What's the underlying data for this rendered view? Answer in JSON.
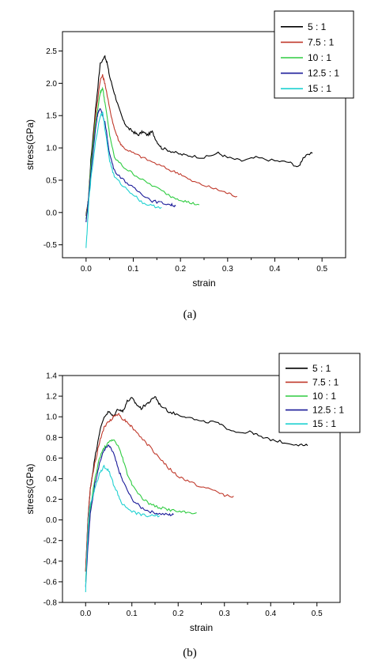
{
  "chart_data": [
    {
      "type": "line",
      "panel_label": "(a)",
      "xlabel": "strain",
      "ylabel": "stress(GPa)",
      "xlim": [
        -0.05,
        0.55
      ],
      "ylim": [
        -0.7,
        2.8
      ],
      "xticks": [
        0.0,
        0.1,
        0.2,
        0.3,
        0.4,
        0.5
      ],
      "xtick_labels": [
        "0.0",
        "0.1",
        "0.2",
        "0.3",
        "0.4",
        "0.5"
      ],
      "yticks": [
        -0.5,
        0.0,
        0.5,
        1.0,
        1.5,
        2.0,
        2.5
      ],
      "ytick_labels": [
        "-0.5",
        "0.0",
        "0.5",
        "1.0",
        "1.5",
        "2.0",
        "2.5"
      ],
      "grid": false,
      "legend_position": "top-right",
      "series": [
        {
          "name": "5 : 1",
          "color": "#000000",
          "x": [
            0.0,
            0.005,
            0.01,
            0.02,
            0.03,
            0.04,
            0.045,
            0.05,
            0.06,
            0.07,
            0.08,
            0.09,
            0.1,
            0.11,
            0.12,
            0.13,
            0.14,
            0.15,
            0.16,
            0.18,
            0.2,
            0.22,
            0.25,
            0.28,
            0.3,
            0.33,
            0.36,
            0.4,
            0.43,
            0.45,
            0.46,
            0.48
          ],
          "y": [
            -0.05,
            0.2,
            0.8,
            1.6,
            2.3,
            2.42,
            2.3,
            2.1,
            1.85,
            1.6,
            1.4,
            1.3,
            1.25,
            1.2,
            1.25,
            1.2,
            1.25,
            1.1,
            1.0,
            0.95,
            0.9,
            0.88,
            0.85,
            0.92,
            0.85,
            0.8,
            0.85,
            0.8,
            0.78,
            0.7,
            0.85,
            0.92
          ]
        },
        {
          "name": "7.5 : 1",
          "color": "#c0392b",
          "x": [
            0.0,
            0.005,
            0.01,
            0.02,
            0.03,
            0.035,
            0.04,
            0.05,
            0.06,
            0.07,
            0.08,
            0.1,
            0.12,
            0.15,
            0.18,
            0.2,
            0.22,
            0.25,
            0.28,
            0.3,
            0.32
          ],
          "y": [
            -0.05,
            0.2,
            0.7,
            1.5,
            2.05,
            2.12,
            2.0,
            1.6,
            1.3,
            1.1,
            1.0,
            0.92,
            0.85,
            0.75,
            0.65,
            0.6,
            0.5,
            0.42,
            0.35,
            0.3,
            0.25
          ]
        },
        {
          "name": "10 : 1",
          "color": "#2ecc40",
          "x": [
            0.0,
            0.005,
            0.01,
            0.02,
            0.03,
            0.035,
            0.04,
            0.05,
            0.06,
            0.08,
            0.1,
            0.12,
            0.15,
            0.18,
            0.2,
            0.22,
            0.24
          ],
          "y": [
            -0.1,
            0.2,
            0.7,
            1.4,
            1.85,
            1.93,
            1.7,
            1.2,
            0.85,
            0.7,
            0.6,
            0.5,
            0.38,
            0.25,
            0.2,
            0.15,
            0.12
          ]
        },
        {
          "name": "12.5 : 1",
          "color": "#1a1a99",
          "x": [
            0.0,
            0.005,
            0.01,
            0.02,
            0.025,
            0.03,
            0.04,
            0.05,
            0.06,
            0.08,
            0.1,
            0.12,
            0.14,
            0.16,
            0.18,
            0.19
          ],
          "y": [
            -0.15,
            0.2,
            0.6,
            1.3,
            1.55,
            1.6,
            1.4,
            0.9,
            0.65,
            0.5,
            0.38,
            0.28,
            0.18,
            0.15,
            0.12,
            0.1
          ]
        },
        {
          "name": "15 : 1",
          "color": "#1fd1d1",
          "x": [
            0.0,
            0.003,
            0.006,
            0.01,
            0.02,
            0.03,
            0.035,
            0.04,
            0.05,
            0.06,
            0.08,
            0.1,
            0.12,
            0.14,
            0.16
          ],
          "y": [
            -0.55,
            -0.2,
            0.2,
            0.5,
            1.1,
            1.5,
            1.55,
            1.3,
            0.8,
            0.55,
            0.4,
            0.28,
            0.15,
            0.1,
            0.08
          ]
        }
      ]
    },
    {
      "type": "line",
      "panel_label": "(b)",
      "xlabel": "strain",
      "ylabel": "stress(GPa)",
      "xlim": [
        -0.05,
        0.55
      ],
      "ylim": [
        -0.8,
        1.4
      ],
      "xticks": [
        0.0,
        0.1,
        0.2,
        0.3,
        0.4,
        0.5
      ],
      "xtick_labels": [
        "0.0",
        "0.1",
        "0.2",
        "0.3",
        "0.4",
        "0.5"
      ],
      "yticks": [
        -0.8,
        -0.6,
        -0.4,
        -0.2,
        0.0,
        0.2,
        0.4,
        0.6,
        0.8,
        1.0,
        1.2,
        1.4
      ],
      "ytick_labels": [
        "-0.8",
        "-0.6",
        "-0.4",
        "-0.2",
        "0.0",
        "0.2",
        "0.4",
        "0.6",
        "0.8",
        "1.0",
        "1.2",
        "1.4"
      ],
      "grid": false,
      "legend_position": "top-right",
      "series": [
        {
          "name": "5 : 1",
          "color": "#000000",
          "x": [
            0.0,
            0.005,
            0.01,
            0.02,
            0.03,
            0.04,
            0.05,
            0.06,
            0.07,
            0.08,
            0.09,
            0.1,
            0.11,
            0.12,
            0.13,
            0.14,
            0.15,
            0.16,
            0.18,
            0.2,
            0.22,
            0.25,
            0.28,
            0.3,
            0.33,
            0.36,
            0.38,
            0.4,
            0.43,
            0.46,
            0.48
          ],
          "y": [
            -0.5,
            0.0,
            0.3,
            0.6,
            0.85,
            1.0,
            1.05,
            1.0,
            1.08,
            1.05,
            1.15,
            1.18,
            1.12,
            1.08,
            1.12,
            1.15,
            1.2,
            1.12,
            1.05,
            1.02,
            1.0,
            0.95,
            0.95,
            0.9,
            0.85,
            0.85,
            0.8,
            0.78,
            0.75,
            0.73,
            0.72
          ]
        },
        {
          "name": "7.5 : 1",
          "color": "#c0392b",
          "x": [
            0.0,
            0.005,
            0.01,
            0.02,
            0.03,
            0.04,
            0.05,
            0.06,
            0.07,
            0.08,
            0.09,
            0.1,
            0.12,
            0.14,
            0.16,
            0.18,
            0.2,
            0.22,
            0.25,
            0.28,
            0.3,
            0.32
          ],
          "y": [
            -0.5,
            0.0,
            0.3,
            0.55,
            0.75,
            0.9,
            0.95,
            1.0,
            1.03,
            0.98,
            0.95,
            0.9,
            0.8,
            0.7,
            0.6,
            0.5,
            0.42,
            0.38,
            0.32,
            0.28,
            0.24,
            0.23
          ]
        },
        {
          "name": "10 : 1",
          "color": "#2ecc40",
          "x": [
            0.0,
            0.005,
            0.01,
            0.02,
            0.03,
            0.04,
            0.05,
            0.06,
            0.07,
            0.08,
            0.09,
            0.1,
            0.12,
            0.14,
            0.16,
            0.18,
            0.2,
            0.22,
            0.24
          ],
          "y": [
            -0.6,
            -0.2,
            0.1,
            0.4,
            0.6,
            0.7,
            0.75,
            0.78,
            0.72,
            0.6,
            0.45,
            0.35,
            0.22,
            0.15,
            0.12,
            0.1,
            0.08,
            0.07,
            0.07
          ]
        },
        {
          "name": "12.5 : 1",
          "color": "#1a1a99",
          "x": [
            0.0,
            0.005,
            0.01,
            0.02,
            0.03,
            0.04,
            0.05,
            0.06,
            0.07,
            0.08,
            0.1,
            0.12,
            0.14,
            0.16,
            0.18,
            0.19
          ],
          "y": [
            -0.65,
            -0.25,
            0.05,
            0.35,
            0.55,
            0.68,
            0.72,
            0.65,
            0.5,
            0.38,
            0.2,
            0.12,
            0.08,
            0.06,
            0.05,
            0.05
          ]
        },
        {
          "name": "15 : 1",
          "color": "#1fd1d1",
          "x": [
            0.0,
            0.003,
            0.006,
            0.01,
            0.02,
            0.03,
            0.04,
            0.05,
            0.06,
            0.07,
            0.08,
            0.1,
            0.12,
            0.14,
            0.16
          ],
          "y": [
            -0.7,
            -0.3,
            0.0,
            0.15,
            0.3,
            0.45,
            0.52,
            0.48,
            0.35,
            0.25,
            0.15,
            0.08,
            0.05,
            0.04,
            0.04
          ]
        }
      ]
    }
  ]
}
